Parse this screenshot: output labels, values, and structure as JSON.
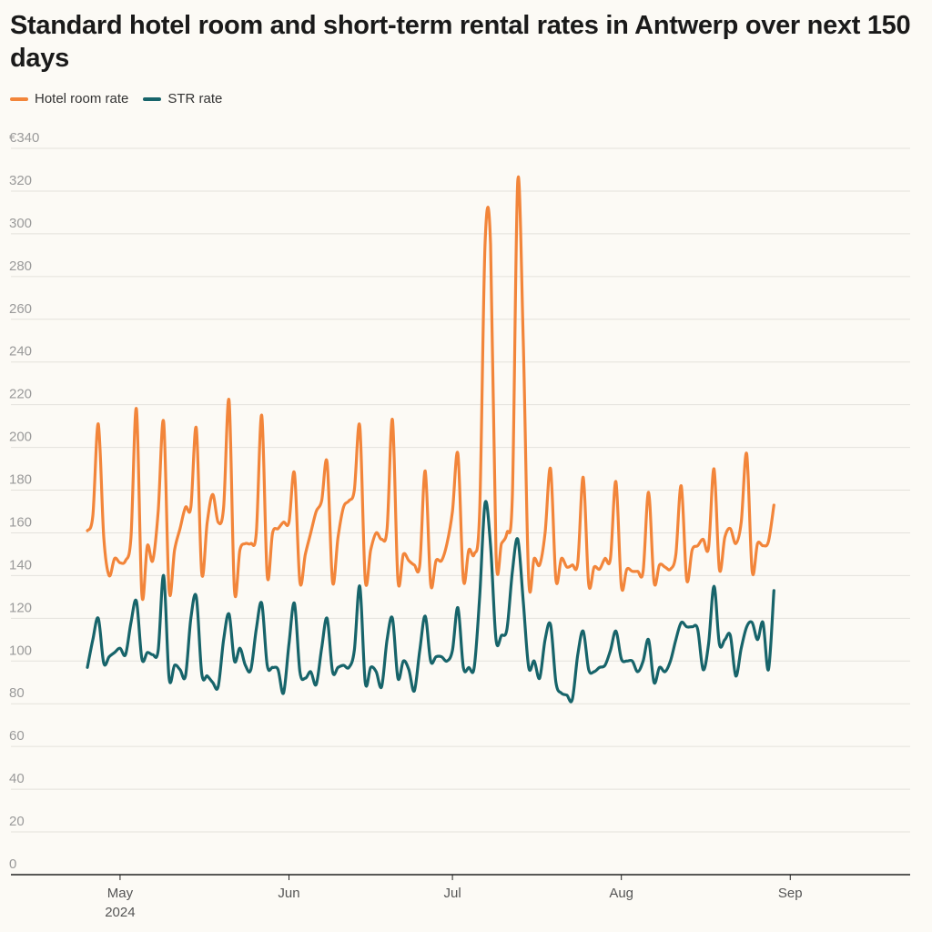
{
  "chart_data": {
    "type": "line",
    "title": "Standard hotel room and short-term rental rates in Antwerp over next 150 days",
    "xlabel": "",
    "ylabel": "",
    "ylim": [
      0,
      340
    ],
    "y_ticks": [
      "€340",
      "320",
      "300",
      "280",
      "260",
      "240",
      "220",
      "200",
      "180",
      "160",
      "140",
      "120",
      "100",
      "80",
      "60",
      "40",
      "20",
      "0"
    ],
    "y_tick_values": [
      340,
      320,
      300,
      280,
      260,
      240,
      220,
      200,
      180,
      160,
      140,
      120,
      100,
      80,
      60,
      40,
      20,
      0
    ],
    "x_range_days": [
      0,
      149
    ],
    "x_ticks": [
      {
        "label": "May",
        "sublabel": "2024",
        "day": 6
      },
      {
        "label": "Jun",
        "sublabel": "",
        "day": 37
      },
      {
        "label": "Jul",
        "sublabel": "",
        "day": 67
      },
      {
        "label": "Aug",
        "sublabel": "",
        "day": 98
      },
      {
        "label": "Sep",
        "sublabel": "",
        "day": 129
      }
    ],
    "legend_position": "top-left",
    "series": [
      {
        "name": "Hotel room rate",
        "color": "#f2853a",
        "points": [
          [
            0,
            161
          ],
          [
            1,
            168
          ],
          [
            2,
            211
          ],
          [
            3,
            158
          ],
          [
            4,
            140
          ],
          [
            5,
            148
          ],
          [
            6,
            146
          ],
          [
            7,
            147
          ],
          [
            8,
            158
          ],
          [
            9,
            218
          ],
          [
            10,
            131
          ],
          [
            11,
            154
          ],
          [
            12,
            147
          ],
          [
            13,
            170
          ],
          [
            14,
            212
          ],
          [
            15,
            133
          ],
          [
            16,
            152
          ],
          [
            17,
            162
          ],
          [
            18,
            172
          ],
          [
            19,
            172
          ],
          [
            20,
            209
          ],
          [
            21,
            141
          ],
          [
            22,
            165
          ],
          [
            23,
            178
          ],
          [
            24,
            165
          ],
          [
            25,
            172
          ],
          [
            26,
            222
          ],
          [
            27,
            133
          ],
          [
            28,
            152
          ],
          [
            29,
            155
          ],
          [
            30,
            155
          ],
          [
            31,
            160
          ],
          [
            32,
            215
          ],
          [
            33,
            140
          ],
          [
            34,
            160
          ],
          [
            35,
            162
          ],
          [
            36,
            165
          ],
          [
            37,
            165
          ],
          [
            38,
            188
          ],
          [
            39,
            137
          ],
          [
            40,
            150
          ],
          [
            41,
            160
          ],
          [
            42,
            170
          ],
          [
            43,
            175
          ],
          [
            44,
            193
          ],
          [
            45,
            137
          ],
          [
            46,
            158
          ],
          [
            47,
            172
          ],
          [
            48,
            175
          ],
          [
            49,
            180
          ],
          [
            50,
            210
          ],
          [
            51,
            138
          ],
          [
            52,
            152
          ],
          [
            53,
            160
          ],
          [
            54,
            157
          ],
          [
            55,
            162
          ],
          [
            56,
            213
          ],
          [
            57,
            138
          ],
          [
            58,
            150
          ],
          [
            59,
            147
          ],
          [
            60,
            145
          ],
          [
            61,
            145
          ],
          [
            62,
            189
          ],
          [
            63,
            136
          ],
          [
            64,
            147
          ],
          [
            65,
            147
          ],
          [
            66,
            155
          ],
          [
            67,
            170
          ],
          [
            68,
            197
          ],
          [
            69,
            138
          ],
          [
            70,
            152
          ],
          [
            71,
            150
          ],
          [
            72,
            170
          ],
          [
            73,
            296
          ],
          [
            74,
            295
          ],
          [
            75,
            150
          ],
          [
            76,
            155
          ],
          [
            77,
            160
          ],
          [
            78,
            178
          ],
          [
            79,
            325
          ],
          [
            80,
            250
          ],
          [
            81,
            138
          ],
          [
            82,
            148
          ],
          [
            83,
            145
          ],
          [
            84,
            160
          ],
          [
            85,
            190
          ],
          [
            86,
            138
          ],
          [
            87,
            148
          ],
          [
            88,
            144
          ],
          [
            89,
            145
          ],
          [
            90,
            146
          ],
          [
            91,
            186
          ],
          [
            92,
            136
          ],
          [
            93,
            144
          ],
          [
            94,
            143
          ],
          [
            95,
            148
          ],
          [
            96,
            148
          ],
          [
            97,
            184
          ],
          [
            98,
            135
          ],
          [
            99,
            143
          ],
          [
            100,
            142
          ],
          [
            101,
            142
          ],
          [
            102,
            142
          ],
          [
            103,
            179
          ],
          [
            104,
            137
          ],
          [
            105,
            145
          ],
          [
            106,
            144
          ],
          [
            107,
            143
          ],
          [
            108,
            150
          ],
          [
            109,
            182
          ],
          [
            110,
            138
          ],
          [
            111,
            152
          ],
          [
            112,
            154
          ],
          [
            113,
            157
          ],
          [
            114,
            153
          ],
          [
            115,
            190
          ],
          [
            116,
            143
          ],
          [
            117,
            158
          ],
          [
            118,
            162
          ],
          [
            119,
            155
          ],
          [
            120,
            165
          ],
          [
            121,
            197
          ],
          [
            122,
            142
          ],
          [
            123,
            155
          ],
          [
            124,
            154
          ],
          [
            125,
            156
          ],
          [
            126,
            173
          ]
        ]
      },
      {
        "name": "STR rate",
        "color": "#17646a",
        "points": [
          [
            0,
            97
          ],
          [
            1,
            110
          ],
          [
            2,
            120
          ],
          [
            3,
            99
          ],
          [
            4,
            102
          ],
          [
            5,
            104
          ],
          [
            6,
            106
          ],
          [
            7,
            103
          ],
          [
            8,
            118
          ],
          [
            9,
            128
          ],
          [
            10,
            101
          ],
          [
            11,
            104
          ],
          [
            12,
            103
          ],
          [
            13,
            105
          ],
          [
            14,
            140
          ],
          [
            15,
            92
          ],
          [
            16,
            98
          ],
          [
            17,
            96
          ],
          [
            18,
            93
          ],
          [
            19,
            120
          ],
          [
            20,
            130
          ],
          [
            21,
            94
          ],
          [
            22,
            93
          ],
          [
            23,
            90
          ],
          [
            24,
            88
          ],
          [
            25,
            110
          ],
          [
            26,
            122
          ],
          [
            27,
            100
          ],
          [
            28,
            106
          ],
          [
            29,
            98
          ],
          [
            30,
            96
          ],
          [
            31,
            115
          ],
          [
            32,
            127
          ],
          [
            33,
            98
          ],
          [
            34,
            97
          ],
          [
            35,
            96
          ],
          [
            36,
            85
          ],
          [
            37,
            108
          ],
          [
            38,
            127
          ],
          [
            39,
            95
          ],
          [
            40,
            92
          ],
          [
            41,
            95
          ],
          [
            42,
            89
          ],
          [
            43,
            106
          ],
          [
            44,
            120
          ],
          [
            45,
            95
          ],
          [
            46,
            97
          ],
          [
            47,
            98
          ],
          [
            48,
            97
          ],
          [
            49,
            105
          ],
          [
            50,
            135
          ],
          [
            51,
            90
          ],
          [
            52,
            97
          ],
          [
            53,
            95
          ],
          [
            54,
            88
          ],
          [
            55,
            110
          ],
          [
            56,
            120
          ],
          [
            57,
            92
          ],
          [
            58,
            100
          ],
          [
            59,
            96
          ],
          [
            60,
            86
          ],
          [
            61,
            105
          ],
          [
            62,
            121
          ],
          [
            63,
            100
          ],
          [
            64,
            102
          ],
          [
            65,
            102
          ],
          [
            66,
            100
          ],
          [
            67,
            105
          ],
          [
            68,
            125
          ],
          [
            69,
            97
          ],
          [
            70,
            97
          ],
          [
            71,
            97
          ],
          [
            72,
            130
          ],
          [
            73,
            174
          ],
          [
            74,
            154
          ],
          [
            75,
            110
          ],
          [
            76,
            112
          ],
          [
            77,
            115
          ],
          [
            78,
            142
          ],
          [
            79,
            157
          ],
          [
            80,
            128
          ],
          [
            81,
            97
          ],
          [
            82,
            100
          ],
          [
            83,
            92
          ],
          [
            84,
            110
          ],
          [
            85,
            117
          ],
          [
            86,
            90
          ],
          [
            87,
            85
          ],
          [
            88,
            84
          ],
          [
            89,
            82
          ],
          [
            90,
            103
          ],
          [
            91,
            114
          ],
          [
            92,
            96
          ],
          [
            93,
            95
          ],
          [
            94,
            97
          ],
          [
            95,
            98
          ],
          [
            96,
            105
          ],
          [
            97,
            114
          ],
          [
            98,
            101
          ],
          [
            99,
            100
          ],
          [
            100,
            100
          ],
          [
            101,
            95
          ],
          [
            102,
            100
          ],
          [
            103,
            110
          ],
          [
            104,
            90
          ],
          [
            105,
            97
          ],
          [
            106,
            95
          ],
          [
            107,
            100
          ],
          [
            108,
            110
          ],
          [
            109,
            118
          ],
          [
            110,
            116
          ],
          [
            111,
            116
          ],
          [
            112,
            115
          ],
          [
            113,
            96
          ],
          [
            114,
            108
          ],
          [
            115,
            135
          ],
          [
            116,
            108
          ],
          [
            117,
            110
          ],
          [
            118,
            112
          ],
          [
            119,
            93
          ],
          [
            120,
            106
          ],
          [
            121,
            116
          ],
          [
            122,
            118
          ],
          [
            123,
            110
          ],
          [
            124,
            118
          ],
          [
            125,
            96
          ],
          [
            126,
            133
          ]
        ]
      }
    ]
  }
}
